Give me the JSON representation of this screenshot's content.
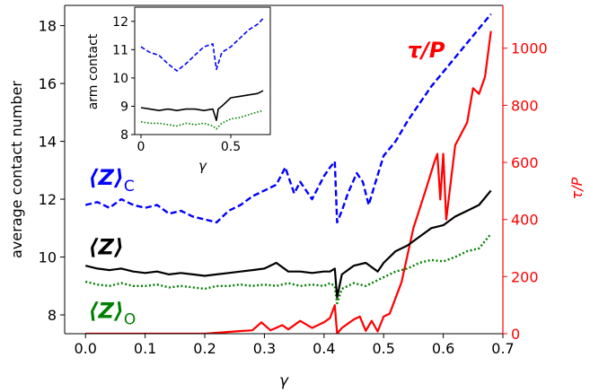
{
  "chart_data": [
    {
      "type": "line",
      "role": "main",
      "xlabel": "γ",
      "ylabel": "average contact number",
      "ylabel_right": "τ/P",
      "xlim": [
        -0.035,
        0.7
      ],
      "ylim": [
        7.35,
        18.7
      ],
      "ylim_right": [
        0,
        1150
      ],
      "x_ticks": [
        0.0,
        0.1,
        0.2,
        0.3,
        0.4,
        0.5,
        0.6,
        0.7
      ],
      "y_ticks": [
        8,
        10,
        12,
        14,
        16,
        18
      ],
      "y_ticks_right": [
        0,
        200,
        400,
        600,
        800,
        1000
      ],
      "grid": false,
      "right_axis_color": "#ff0000",
      "series": [
        {
          "axis": "left",
          "color": "#0000ff",
          "style": "dashed",
          "x": [
            0.0,
            0.02,
            0.04,
            0.06,
            0.08,
            0.1,
            0.12,
            0.14,
            0.16,
            0.18,
            0.2,
            0.22,
            0.24,
            0.26,
            0.28,
            0.3,
            0.32,
            0.335,
            0.35,
            0.36,
            0.38,
            0.4,
            0.41,
            0.418,
            0.422,
            0.43,
            0.44,
            0.455,
            0.465,
            0.475,
            0.485,
            0.5,
            0.52,
            0.54,
            0.56,
            0.58,
            0.6,
            0.62,
            0.64,
            0.66,
            0.68
          ],
          "y": [
            11.8,
            11.9,
            11.7,
            12.0,
            11.8,
            11.7,
            11.8,
            11.5,
            11.6,
            11.4,
            11.3,
            11.2,
            11.6,
            11.8,
            12.1,
            12.3,
            12.5,
            13.1,
            12.2,
            12.6,
            12.0,
            12.8,
            13.1,
            13.3,
            11.2,
            11.6,
            12.2,
            12.9,
            12.6,
            11.8,
            12.5,
            13.5,
            14.0,
            14.7,
            15.3,
            15.9,
            16.4,
            16.9,
            17.4,
            17.9,
            18.4
          ]
        },
        {
          "axis": "left",
          "color": "#000000",
          "style": "solid",
          "x": [
            0.0,
            0.02,
            0.04,
            0.06,
            0.08,
            0.1,
            0.12,
            0.14,
            0.16,
            0.18,
            0.2,
            0.22,
            0.24,
            0.26,
            0.28,
            0.3,
            0.32,
            0.34,
            0.36,
            0.38,
            0.4,
            0.41,
            0.418,
            0.422,
            0.43,
            0.45,
            0.47,
            0.49,
            0.5,
            0.52,
            0.54,
            0.56,
            0.58,
            0.6,
            0.62,
            0.64,
            0.66,
            0.68
          ],
          "y": [
            9.7,
            9.6,
            9.55,
            9.6,
            9.5,
            9.45,
            9.5,
            9.4,
            9.45,
            9.4,
            9.35,
            9.4,
            9.45,
            9.5,
            9.55,
            9.6,
            9.8,
            9.5,
            9.5,
            9.45,
            9.5,
            9.5,
            9.6,
            8.6,
            9.4,
            9.7,
            9.8,
            9.5,
            9.8,
            10.2,
            10.4,
            10.7,
            11.0,
            11.1,
            11.4,
            11.6,
            11.8,
            12.3
          ]
        },
        {
          "axis": "left",
          "color": "#008000",
          "style": "dotted",
          "x": [
            0.0,
            0.02,
            0.04,
            0.06,
            0.08,
            0.1,
            0.12,
            0.14,
            0.16,
            0.18,
            0.2,
            0.22,
            0.24,
            0.26,
            0.28,
            0.3,
            0.32,
            0.34,
            0.36,
            0.38,
            0.4,
            0.41,
            0.418,
            0.422,
            0.43,
            0.45,
            0.47,
            0.49,
            0.5,
            0.52,
            0.54,
            0.56,
            0.58,
            0.6,
            0.62,
            0.64,
            0.66,
            0.68
          ],
          "y": [
            9.15,
            9.05,
            9.0,
            9.1,
            9.0,
            9.0,
            9.05,
            8.95,
            9.0,
            8.95,
            8.9,
            9.0,
            9.0,
            9.05,
            9.0,
            9.05,
            9.0,
            9.1,
            9.0,
            9.05,
            9.0,
            9.1,
            9.0,
            8.4,
            8.9,
            9.1,
            9.0,
            9.2,
            9.3,
            9.5,
            9.6,
            9.8,
            9.9,
            9.85,
            10.0,
            10.2,
            10.3,
            10.8
          ]
        },
        {
          "axis": "right",
          "color": "#ff0000",
          "style": "solid",
          "x": [
            0.0,
            0.1,
            0.15,
            0.2,
            0.25,
            0.28,
            0.295,
            0.31,
            0.33,
            0.34,
            0.36,
            0.38,
            0.4,
            0.41,
            0.418,
            0.422,
            0.43,
            0.45,
            0.46,
            0.47,
            0.48,
            0.49,
            0.5,
            0.51,
            0.53,
            0.55,
            0.57,
            0.585,
            0.59,
            0.595,
            0.6,
            0.605,
            0.62,
            0.64,
            0.65,
            0.66,
            0.67,
            0.68
          ],
          "y": [
            0,
            0,
            0,
            0,
            8,
            12,
            40,
            12,
            30,
            15,
            45,
            20,
            40,
            55,
            100,
            0,
            20,
            50,
            60,
            10,
            45,
            8,
            60,
            70,
            180,
            370,
            500,
            600,
            630,
            470,
            630,
            400,
            660,
            740,
            860,
            840,
            900,
            1060
          ]
        }
      ],
      "annotations": [
        {
          "text": "⟨Z⟩",
          "sub": "C",
          "color": "#0000ff",
          "x": 0.005,
          "y": 12.5
        },
        {
          "text": "⟨Z⟩",
          "sub": "",
          "color": "#000000",
          "x": 0.005,
          "y": 10.1
        },
        {
          "text": "⟨Z⟩",
          "sub": "O",
          "color": "#008000",
          "x": 0.005,
          "y": 7.9
        },
        {
          "text": "τ/P",
          "sub": "",
          "color": "#ff0000",
          "x": 0.54,
          "y": 16.9
        }
      ]
    },
    {
      "type": "line",
      "role": "inset",
      "xlabel": "γ",
      "ylabel": "arm contact",
      "xlim": [
        -0.035,
        0.72
      ],
      "ylim": [
        8.0,
        12.5
      ],
      "x_ticks": [
        0.0,
        0.5
      ],
      "y_ticks": [
        8,
        9,
        10,
        11,
        12
      ],
      "grid": false,
      "series": [
        {
          "color": "#0000ff",
          "style": "dashed",
          "x": [
            0.0,
            0.05,
            0.1,
            0.15,
            0.2,
            0.25,
            0.3,
            0.35,
            0.4,
            0.42,
            0.45,
            0.5,
            0.55,
            0.6,
            0.65,
            0.68
          ],
          "y": [
            11.1,
            10.9,
            10.8,
            10.5,
            10.25,
            10.5,
            10.8,
            11.1,
            11.2,
            10.3,
            10.9,
            11.1,
            11.4,
            11.7,
            11.9,
            12.1
          ]
        },
        {
          "color": "#000000",
          "style": "solid",
          "x": [
            0.0,
            0.05,
            0.1,
            0.15,
            0.2,
            0.25,
            0.3,
            0.35,
            0.4,
            0.42,
            0.43,
            0.45,
            0.5,
            0.55,
            0.6,
            0.65,
            0.68
          ],
          "y": [
            8.95,
            8.9,
            8.85,
            8.9,
            8.85,
            8.9,
            8.9,
            8.85,
            8.9,
            8.5,
            8.9,
            9.0,
            9.3,
            9.35,
            9.4,
            9.45,
            9.55
          ]
        },
        {
          "color": "#008000",
          "style": "dotted",
          "x": [
            0.0,
            0.05,
            0.1,
            0.15,
            0.2,
            0.25,
            0.3,
            0.35,
            0.4,
            0.42,
            0.45,
            0.5,
            0.55,
            0.6,
            0.65,
            0.68
          ],
          "y": [
            8.45,
            8.4,
            8.4,
            8.35,
            8.3,
            8.4,
            8.35,
            8.4,
            8.3,
            8.2,
            8.4,
            8.55,
            8.6,
            8.7,
            8.8,
            8.85
          ]
        }
      ]
    }
  ]
}
